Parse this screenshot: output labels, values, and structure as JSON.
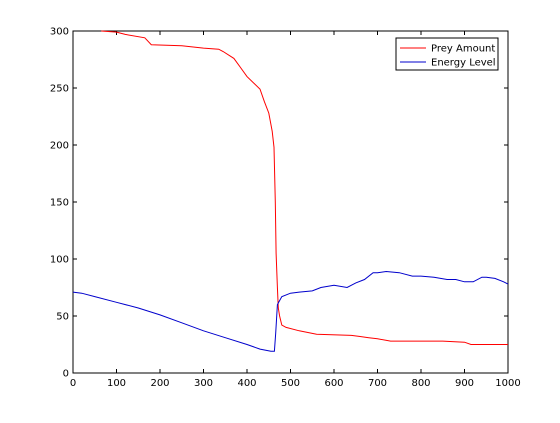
{
  "chart_data": {
    "type": "line",
    "title": "",
    "xlabel": "",
    "ylabel": "",
    "xlim": [
      0,
      1000
    ],
    "ylim": [
      0,
      300
    ],
    "xticks": [
      0,
      100,
      200,
      300,
      400,
      500,
      600,
      700,
      800,
      900,
      1000
    ],
    "yticks": [
      0,
      50,
      100,
      150,
      200,
      250,
      300
    ],
    "grid": false,
    "legend_position": "top-right",
    "series": [
      {
        "name": "Prey Amount",
        "color": "#ff0000",
        "x": [
          65,
          100,
          120,
          165,
          180,
          250,
          300,
          335,
          345,
          370,
          385,
          400,
          430,
          440,
          450,
          458,
          462,
          465,
          467,
          470,
          472,
          475,
          480,
          490,
          520,
          560,
          640,
          660,
          680,
          700,
          730,
          850,
          900,
          915,
          950,
          1000
        ],
        "y": [
          300,
          299,
          297,
          294,
          288,
          287,
          285,
          284,
          282,
          276,
          268,
          260,
          249,
          238,
          228,
          212,
          198,
          150,
          105,
          75,
          57,
          50,
          42,
          40,
          37,
          34,
          33,
          32,
          31,
          30,
          28,
          28,
          27,
          25,
          25,
          25
        ]
      },
      {
        "name": "Energy Level",
        "color": "#0000cc",
        "x": [
          0,
          20,
          50,
          100,
          150,
          200,
          250,
          300,
          350,
          400,
          430,
          455,
          463,
          466,
          470,
          480,
          500,
          520,
          550,
          570,
          600,
          630,
          650,
          670,
          690,
          700,
          720,
          750,
          780,
          800,
          830,
          860,
          880,
          900,
          920,
          940,
          950,
          970,
          990,
          1000
        ],
        "y": [
          71,
          70,
          67,
          62,
          57,
          51,
          44,
          37,
          31,
          25,
          21,
          19,
          19,
          35,
          60,
          67,
          70,
          71,
          72,
          75,
          77,
          75,
          79,
          82,
          88,
          88,
          89,
          88,
          85,
          85,
          84,
          82,
          82,
          80,
          80,
          84,
          84,
          83,
          80,
          78
        ]
      }
    ]
  }
}
